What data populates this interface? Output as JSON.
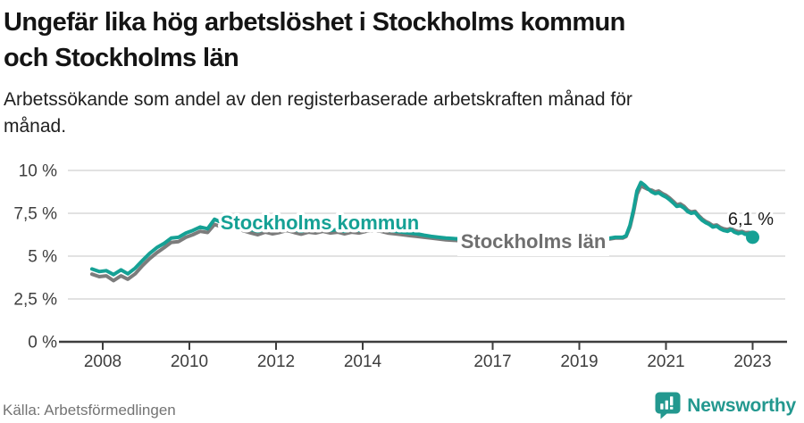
{
  "header": {
    "title_lines": [
      "Ungefär lika hög arbetslöshet i Stockholms kommun",
      "och Stockholms län"
    ],
    "subtitle_lines": [
      "Arbetssökande som andel av den registerbaserade arbetskraften månad för",
      "månad."
    ]
  },
  "footer": {
    "source": "Källa: Arbetsförmedlingen",
    "brand": "Newsworthy",
    "brand_color": "#23988f"
  },
  "chart_data": {
    "type": "line",
    "title": "Ungefär lika hög arbetslöshet i Stockholms kommun och Stockholms län",
    "subtitle": "Arbetssökande som andel av den registerbaserade arbetskraften månad för månad.",
    "unit": "%",
    "grid": "horizontal",
    "legend": "inline-labels",
    "colors": {
      "kommun": "#15a195",
      "lan": "#7c7c7c",
      "gridline": "#d8d8d8",
      "axis": "#3e3e3e"
    },
    "x_axis": {
      "range": [
        2007.6,
        2023.7
      ],
      "ticks": [
        {
          "label": "2008",
          "value": 2008
        },
        {
          "label": "2010",
          "value": 2010
        },
        {
          "label": "2012",
          "value": 2012
        },
        {
          "label": "2014",
          "value": 2014
        },
        {
          "label": "2017",
          "value": 2017
        },
        {
          "label": "2019",
          "value": 2019
        },
        {
          "label": "2021",
          "value": 2021
        },
        {
          "label": "2023",
          "value": 2023
        }
      ]
    },
    "y_axis": {
      "range": [
        0,
        10
      ],
      "ticks": [
        {
          "label": "0 %",
          "value": 0
        },
        {
          "label": "2,5 %",
          "value": 2.5
        },
        {
          "label": "5 %",
          "value": 5
        },
        {
          "label": "7,5 %",
          "value": 7.5
        },
        {
          "label": "10 %",
          "value": 10
        }
      ]
    },
    "series": [
      {
        "name": "Stockholms län",
        "color": "#7c7c7c",
        "points": [
          [
            2007.75,
            3.95
          ],
          [
            2007.92,
            3.8
          ],
          [
            2008.08,
            3.85
          ],
          [
            2008.25,
            3.57
          ],
          [
            2008.42,
            3.85
          ],
          [
            2008.58,
            3.65
          ],
          [
            2008.75,
            3.97
          ],
          [
            2008.92,
            4.45
          ],
          [
            2009.08,
            4.85
          ],
          [
            2009.25,
            5.2
          ],
          [
            2009.42,
            5.5
          ],
          [
            2009.58,
            5.8
          ],
          [
            2009.75,
            5.85
          ],
          [
            2009.92,
            6.1
          ],
          [
            2010.08,
            6.25
          ],
          [
            2010.25,
            6.45
          ],
          [
            2010.42,
            6.38
          ],
          [
            2010.58,
            6.85
          ],
          [
            2010.75,
            6.7
          ],
          [
            2010.92,
            6.85
          ],
          [
            2011.08,
            6.65
          ],
          [
            2011.25,
            6.48
          ],
          [
            2011.42,
            6.35
          ],
          [
            2011.58,
            6.25
          ],
          [
            2011.75,
            6.4
          ],
          [
            2011.92,
            6.3
          ],
          [
            2012.08,
            6.38
          ],
          [
            2012.25,
            6.5
          ],
          [
            2012.42,
            6.38
          ],
          [
            2012.58,
            6.28
          ],
          [
            2012.75,
            6.4
          ],
          [
            2012.92,
            6.35
          ],
          [
            2013.08,
            6.45
          ],
          [
            2013.25,
            6.35
          ],
          [
            2013.42,
            6.4
          ],
          [
            2013.58,
            6.3
          ],
          [
            2013.75,
            6.4
          ],
          [
            2013.92,
            6.35
          ],
          [
            2014.08,
            6.45
          ],
          [
            2014.25,
            6.5
          ],
          [
            2014.42,
            6.45
          ],
          [
            2014.58,
            6.35
          ],
          [
            2014.75,
            6.3
          ],
          [
            2014.92,
            6.25
          ],
          [
            2015.08,
            6.2
          ],
          [
            2015.25,
            6.15
          ],
          [
            2015.42,
            6.1
          ],
          [
            2015.58,
            6.05
          ],
          [
            2015.75,
            6.0
          ],
          [
            2015.92,
            5.95
          ],
          [
            2016.25,
            5.9
          ],
          [
            2016.58,
            5.85
          ],
          [
            2016.92,
            5.9
          ],
          [
            2017.25,
            5.85
          ],
          [
            2017.58,
            5.8
          ],
          [
            2017.92,
            5.85
          ],
          [
            2018.25,
            5.8
          ],
          [
            2018.58,
            5.85
          ],
          [
            2018.92,
            5.9
          ],
          [
            2019.25,
            5.92
          ],
          [
            2019.58,
            5.95
          ],
          [
            2019.83,
            6.05
          ],
          [
            2020.0,
            6.05
          ],
          [
            2020.08,
            6.15
          ],
          [
            2020.17,
            6.7
          ],
          [
            2020.25,
            7.55
          ],
          [
            2020.33,
            8.6
          ],
          [
            2020.42,
            9.1
          ],
          [
            2020.5,
            9.0
          ],
          [
            2020.58,
            8.9
          ],
          [
            2020.67,
            8.85
          ],
          [
            2020.75,
            8.75
          ],
          [
            2020.83,
            8.8
          ],
          [
            2020.92,
            8.65
          ],
          [
            2021.0,
            8.55
          ],
          [
            2021.08,
            8.4
          ],
          [
            2021.17,
            8.2
          ],
          [
            2021.25,
            8.0
          ],
          [
            2021.33,
            8.05
          ],
          [
            2021.42,
            7.9
          ],
          [
            2021.5,
            7.68
          ],
          [
            2021.58,
            7.58
          ],
          [
            2021.67,
            7.62
          ],
          [
            2021.75,
            7.38
          ],
          [
            2021.83,
            7.18
          ],
          [
            2021.92,
            7.02
          ],
          [
            2022.0,
            6.92
          ],
          [
            2022.08,
            6.78
          ],
          [
            2022.17,
            6.82
          ],
          [
            2022.25,
            6.68
          ],
          [
            2022.33,
            6.6
          ],
          [
            2022.42,
            6.55
          ],
          [
            2022.5,
            6.62
          ],
          [
            2022.58,
            6.5
          ],
          [
            2022.67,
            6.42
          ],
          [
            2022.75,
            6.45
          ],
          [
            2022.83,
            6.37
          ],
          [
            2022.92,
            6.38
          ],
          [
            2023.0,
            6.15
          ]
        ]
      },
      {
        "name": "Stockholms kommun",
        "color": "#15a195",
        "points": [
          [
            2007.75,
            4.25
          ],
          [
            2007.92,
            4.1
          ],
          [
            2008.08,
            4.15
          ],
          [
            2008.25,
            3.92
          ],
          [
            2008.42,
            4.2
          ],
          [
            2008.58,
            3.97
          ],
          [
            2008.75,
            4.3
          ],
          [
            2008.92,
            4.75
          ],
          [
            2009.08,
            5.15
          ],
          [
            2009.25,
            5.5
          ],
          [
            2009.42,
            5.75
          ],
          [
            2009.58,
            6.05
          ],
          [
            2009.75,
            6.1
          ],
          [
            2009.92,
            6.35
          ],
          [
            2010.08,
            6.5
          ],
          [
            2010.25,
            6.7
          ],
          [
            2010.42,
            6.6
          ],
          [
            2010.58,
            7.15
          ],
          [
            2010.75,
            6.95
          ],
          [
            2010.92,
            7.15
          ],
          [
            2011.08,
            6.9
          ],
          [
            2011.25,
            6.72
          ],
          [
            2011.42,
            6.55
          ],
          [
            2011.58,
            6.45
          ],
          [
            2011.75,
            6.58
          ],
          [
            2011.92,
            6.48
          ],
          [
            2012.08,
            6.55
          ],
          [
            2012.25,
            6.7
          ],
          [
            2012.42,
            6.55
          ],
          [
            2012.58,
            6.45
          ],
          [
            2012.75,
            6.55
          ],
          [
            2012.92,
            6.5
          ],
          [
            2013.08,
            6.6
          ],
          [
            2013.25,
            6.5
          ],
          [
            2013.42,
            6.55
          ],
          [
            2013.58,
            6.45
          ],
          [
            2013.75,
            6.55
          ],
          [
            2013.92,
            6.5
          ],
          [
            2014.08,
            6.6
          ],
          [
            2014.25,
            6.65
          ],
          [
            2014.42,
            6.6
          ],
          [
            2014.58,
            6.5
          ],
          [
            2014.75,
            6.45
          ],
          [
            2014.92,
            6.4
          ],
          [
            2015.08,
            6.35
          ],
          [
            2015.25,
            6.3
          ],
          [
            2015.42,
            6.22
          ],
          [
            2015.58,
            6.15
          ],
          [
            2015.75,
            6.1
          ],
          [
            2015.92,
            6.05
          ],
          [
            2016.25,
            6.0
          ],
          [
            2016.58,
            5.95
          ],
          [
            2016.92,
            6.0
          ],
          [
            2017.25,
            5.95
          ],
          [
            2017.58,
            5.9
          ],
          [
            2017.92,
            5.95
          ],
          [
            2018.25,
            5.9
          ],
          [
            2018.58,
            5.95
          ],
          [
            2018.92,
            6.0
          ],
          [
            2019.25,
            6.0
          ],
          [
            2019.58,
            6.0
          ],
          [
            2019.83,
            6.1
          ],
          [
            2020.0,
            6.1
          ],
          [
            2020.08,
            6.2
          ],
          [
            2020.17,
            6.8
          ],
          [
            2020.25,
            7.7
          ],
          [
            2020.33,
            8.8
          ],
          [
            2020.42,
            9.3
          ],
          [
            2020.5,
            9.15
          ],
          [
            2020.58,
            8.95
          ],
          [
            2020.67,
            8.75
          ],
          [
            2020.75,
            8.65
          ],
          [
            2020.83,
            8.7
          ],
          [
            2020.92,
            8.55
          ],
          [
            2021.0,
            8.45
          ],
          [
            2021.08,
            8.3
          ],
          [
            2021.17,
            8.1
          ],
          [
            2021.25,
            7.9
          ],
          [
            2021.33,
            7.95
          ],
          [
            2021.42,
            7.8
          ],
          [
            2021.5,
            7.6
          ],
          [
            2021.58,
            7.5
          ],
          [
            2021.67,
            7.55
          ],
          [
            2021.75,
            7.3
          ],
          [
            2021.83,
            7.1
          ],
          [
            2021.92,
            6.95
          ],
          [
            2022.0,
            6.85
          ],
          [
            2022.08,
            6.7
          ],
          [
            2022.17,
            6.75
          ],
          [
            2022.25,
            6.6
          ],
          [
            2022.33,
            6.5
          ],
          [
            2022.42,
            6.45
          ],
          [
            2022.5,
            6.55
          ],
          [
            2022.58,
            6.4
          ],
          [
            2022.67,
            6.32
          ],
          [
            2022.75,
            6.38
          ],
          [
            2022.83,
            6.27
          ],
          [
            2022.92,
            6.3
          ],
          [
            2023.0,
            6.1
          ]
        ]
      }
    ],
    "series_labels": [
      {
        "text": "Stockholms kommun",
        "series": "Stockholms kommun",
        "color": "#15a195"
      },
      {
        "text": "Stockholms län",
        "series": "Stockholms län",
        "color": "#6f6f6f"
      }
    ],
    "end_annotation": {
      "text": "6,1 %",
      "x": 2023.0,
      "y": 6.1,
      "series": "Stockholms kommun"
    },
    "source": "Källa: Arbetsförmedlingen"
  }
}
